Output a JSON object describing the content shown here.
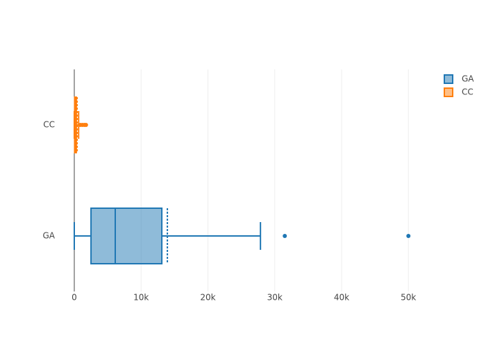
{
  "chart_data": {
    "type": "box",
    "orientation": "h",
    "series": [
      {
        "name": "GA",
        "color": "#1f77b4",
        "min": 0,
        "q1": 2500,
        "median": 6130,
        "q3": 13100,
        "max": 27860,
        "mean": 13930,
        "outliers": [
          31500,
          50000
        ]
      },
      {
        "name": "CC",
        "color": "#ff7f0e",
        "min": 0,
        "q1": 50,
        "median": 150,
        "q3": 300,
        "max": 650,
        "mean": 420,
        "outliers": [
          900,
          1200,
          1500,
          1750
        ]
      }
    ],
    "xlim": [
      0,
      53300
    ],
    "xticks": [
      0,
      {
        "value": 10000,
        "label": "10k"
      },
      {
        "value": 20000,
        "label": "20k"
      },
      {
        "value": 30000,
        "label": "30k"
      },
      {
        "value": 40000,
        "label": "40k"
      },
      {
        "value": 50000,
        "label": "50k"
      }
    ],
    "grid": true,
    "legend": "top-right"
  }
}
